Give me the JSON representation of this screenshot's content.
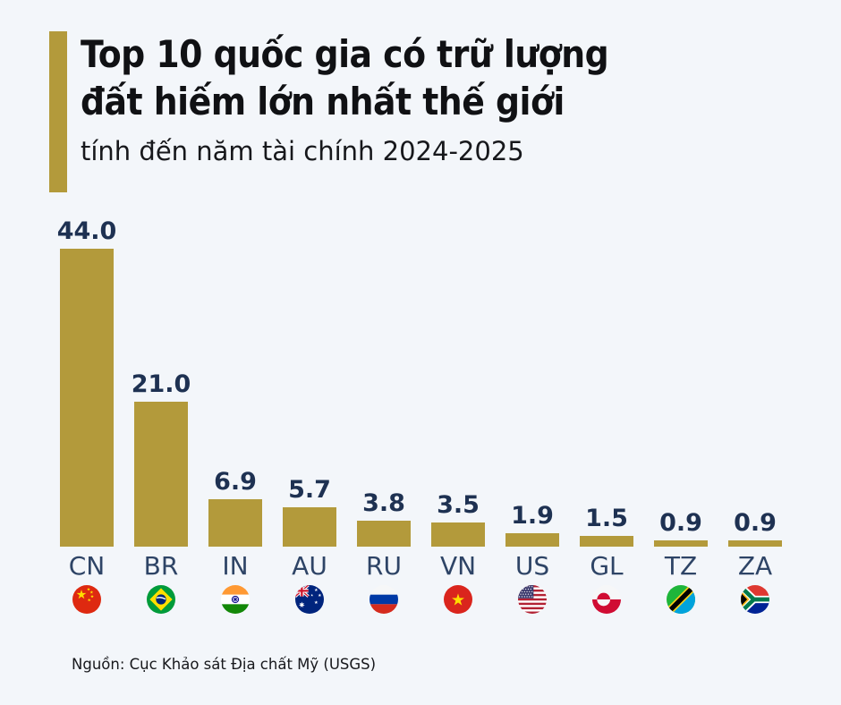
{
  "colors": {
    "background": "#f3f6fa",
    "accent": "#b39a3b",
    "bar": "#b39a3b",
    "value_label": "#1e3152",
    "category_label": "#2e4466",
    "title": "#101114"
  },
  "header": {
    "title_line1": "Top 10 quốc gia có trữ lượng",
    "title_line2": "đất hiếm lớn nhất thế giới",
    "subtitle": "tính đến năm tài chính 2024-2025"
  },
  "chart_data": {
    "type": "bar",
    "title": "Top 10 quốc gia có trữ lượng đất hiếm lớn nhất thế giới",
    "subtitle": "tính đến năm tài chính 2024-2025",
    "categories": [
      "CN",
      "BR",
      "IN",
      "AU",
      "RU",
      "VN",
      "US",
      "GL",
      "TZ",
      "ZA"
    ],
    "values": [
      44.0,
      21.0,
      6.9,
      5.7,
      3.8,
      3.5,
      1.9,
      1.5,
      0.9,
      0.9
    ],
    "value_labels": [
      "44.0",
      "21.0",
      "6.9",
      "5.7",
      "3.8",
      "3.5",
      "1.9",
      "1.5",
      "0.9",
      "0.9"
    ],
    "flags": [
      "china",
      "brazil",
      "india",
      "australia",
      "russia",
      "vietnam",
      "united-states",
      "greenland",
      "tanzania",
      "south-africa"
    ],
    "xlabel": "",
    "ylabel": "",
    "ylim": [
      0,
      46
    ],
    "grid": false,
    "legend": false,
    "bar_color": "#b39a3b",
    "orientation": "vertical"
  },
  "footer": {
    "source": "Nguồn: Cục Khảo sát Địa chất Mỹ (USGS)"
  }
}
